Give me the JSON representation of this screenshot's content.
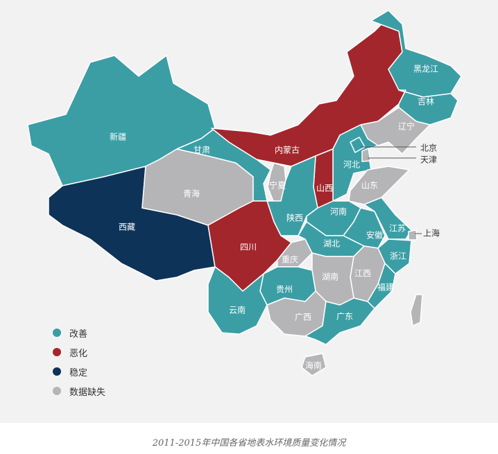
{
  "colors": {
    "improved": "#3b9ea5",
    "worsened": "#a3262c",
    "stable": "#0e3358",
    "missing": "#b5b5b7"
  },
  "legend": [
    {
      "key": "improved",
      "label": "改善"
    },
    {
      "key": "worsened",
      "label": "恶化"
    },
    {
      "key": "stable",
      "label": "稳定"
    },
    {
      "key": "missing",
      "label": "数据缺失"
    }
  ],
  "provinces": [
    {
      "id": "xinjiang",
      "name": "新疆",
      "status": "improved"
    },
    {
      "id": "tibet",
      "name": "西藏",
      "status": "stable"
    },
    {
      "id": "qinghai",
      "name": "青海",
      "status": "missing"
    },
    {
      "id": "gansu",
      "name": "甘肃",
      "status": "improved"
    },
    {
      "id": "inner-mongolia",
      "name": "内蒙古",
      "status": "worsened"
    },
    {
      "id": "heilongjiang",
      "name": "黑龙江",
      "status": "improved"
    },
    {
      "id": "jilin",
      "name": "吉林",
      "status": "improved"
    },
    {
      "id": "liaoning",
      "name": "辽宁",
      "status": "missing"
    },
    {
      "id": "hebei",
      "name": "河北",
      "status": "improved"
    },
    {
      "id": "beijing",
      "name": "北京",
      "status": "improved"
    },
    {
      "id": "tianjin",
      "name": "天津",
      "status": "missing"
    },
    {
      "id": "shanxi",
      "name": "山西",
      "status": "worsened"
    },
    {
      "id": "shandong",
      "name": "山东",
      "status": "missing"
    },
    {
      "id": "ningxia",
      "name": "宁夏",
      "status": "missing"
    },
    {
      "id": "shaanxi",
      "name": "陕西",
      "status": "improved"
    },
    {
      "id": "henan",
      "name": "河南",
      "status": "improved"
    },
    {
      "id": "sichuan",
      "name": "四川",
      "status": "worsened"
    },
    {
      "id": "chongqing",
      "name": "重庆",
      "status": "missing"
    },
    {
      "id": "hubei",
      "name": "湖北",
      "status": "improved"
    },
    {
      "id": "anhui",
      "name": "安徽",
      "status": "improved"
    },
    {
      "id": "jiangsu",
      "name": "江苏",
      "status": "improved"
    },
    {
      "id": "shanghai",
      "name": "上海",
      "status": "missing"
    },
    {
      "id": "zhejiang",
      "name": "浙江",
      "status": "improved"
    },
    {
      "id": "jiangxi",
      "name": "江西",
      "status": "missing"
    },
    {
      "id": "fujian",
      "name": "福建",
      "status": "improved"
    },
    {
      "id": "hunan",
      "name": "湖南",
      "status": "missing"
    },
    {
      "id": "guizhou",
      "name": "贵州",
      "status": "improved"
    },
    {
      "id": "yunnan",
      "name": "云南",
      "status": "improved"
    },
    {
      "id": "guangxi",
      "name": "广西",
      "status": "missing"
    },
    {
      "id": "guangdong",
      "name": "广东",
      "status": "improved"
    },
    {
      "id": "hainan",
      "name": "海南",
      "status": "missing"
    },
    {
      "id": "taiwan",
      "name": "",
      "status": "missing"
    }
  ],
  "caption": "2011-2015年中国各省地表水环境质量变化情况"
}
